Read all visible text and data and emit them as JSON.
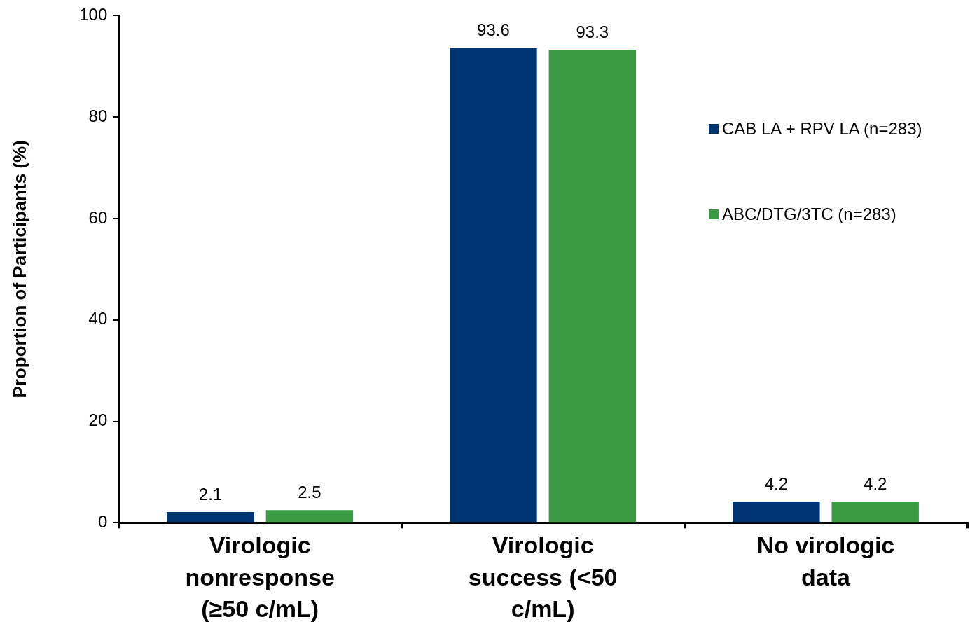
{
  "chart_data": {
    "type": "bar",
    "ylabel": "Proportion of Participants (%)",
    "categories": [
      "Virologic nonresponse (≥50 c/mL)",
      "Virologic success (<50 c/mL)",
      "No virologic data"
    ],
    "series": [
      {
        "name": "CAB LA + RPV LA (n=283)",
        "color": "#003473",
        "values": [
          2.1,
          93.6,
          4.2
        ]
      },
      {
        "name": "ABC/DTG/3TC (n=283)",
        "color": "#3a9a43",
        "values": [
          2.5,
          93.3,
          4.2
        ]
      }
    ],
    "ylim": [
      0,
      100
    ],
    "yticks": [
      0,
      20,
      40,
      60,
      80,
      100
    ],
    "grid": false,
    "legend": "right",
    "data_labels": true
  }
}
